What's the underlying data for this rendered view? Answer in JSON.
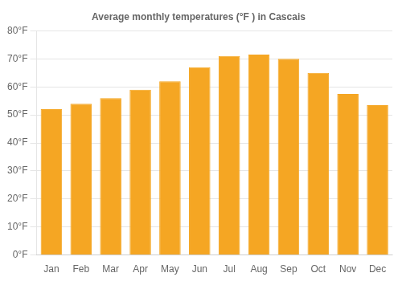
{
  "chart_data": {
    "type": "bar",
    "title": "Average monthly temperatures (°F ) in Cascais",
    "categories": [
      "Jan",
      "Feb",
      "Mar",
      "Apr",
      "May",
      "Jun",
      "Jul",
      "Aug",
      "Sep",
      "Oct",
      "Nov",
      "Dec"
    ],
    "values": [
      52,
      54,
      56,
      59,
      62,
      67,
      71,
      71.5,
      70,
      65,
      57.5,
      53.5
    ],
    "color": "#F5A623",
    "ylim": [
      0,
      80
    ],
    "yticks": [
      {
        "value": 0,
        "label": "0°F"
      },
      {
        "value": 10,
        "label": "10°F"
      },
      {
        "value": 20,
        "label": "20°F"
      },
      {
        "value": 30,
        "label": "30°F"
      },
      {
        "value": 40,
        "label": "40°F"
      },
      {
        "value": 50,
        "label": "50°F"
      },
      {
        "value": 60,
        "label": "60°F"
      },
      {
        "value": 70,
        "label": "70°F"
      },
      {
        "value": 80,
        "label": "80°F"
      }
    ],
    "grid": true
  }
}
